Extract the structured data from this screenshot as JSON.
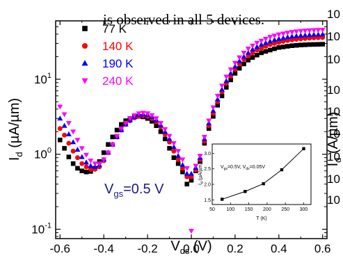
{
  "top_text": "is observed in all 5 devices.",
  "right_clip": {
    "ticks": [
      "10",
      "10",
      "10",
      "10",
      "10",
      "10",
      "10",
      "10",
      "10"
    ],
    "ylabel_main": "I",
    "ylabel_sub": "d",
    "ylabel_unit": " (A/µm)"
  },
  "chart_data": {
    "type": "scatter",
    "xlabel_main": "V",
    "xlabel_sub": "ds",
    "xlabel_unit": " (V)",
    "ylabel_main": "I",
    "ylabel_sub": "d",
    "ylabel_unit": " (µA/µm)",
    "xlim": [
      -0.62,
      0.62
    ],
    "ylim": [
      0.075,
      60
    ],
    "yscale": "log",
    "x_ticks": [
      "-0.6",
      "-0.4",
      "-0.2",
      "0.0",
      "0.2",
      "0.4",
      "0.6"
    ],
    "y_ticks": [
      {
        "base": "10",
        "exp": "-1",
        "value": 0.1
      },
      {
        "base": "10",
        "exp": "0",
        "value": 1
      },
      {
        "base": "10",
        "exp": "1",
        "value": 10
      }
    ],
    "annotation": {
      "main": "V",
      "sub": "gs",
      "rest": "=0.5 V"
    },
    "legend_position": "top-left",
    "series": [
      {
        "name": "77 K",
        "color": "#000000",
        "marker": "square",
        "points": [
          [
            -0.6,
            1.55
          ],
          [
            -0.58,
            1.2
          ],
          [
            -0.56,
            0.92
          ],
          [
            -0.54,
            0.75
          ],
          [
            -0.52,
            0.65
          ],
          [
            -0.5,
            0.6
          ],
          [
            -0.48,
            0.58
          ],
          [
            -0.46,
            0.59
          ],
          [
            -0.44,
            0.65
          ],
          [
            -0.42,
            0.8
          ],
          [
            -0.4,
            1.05
          ],
          [
            -0.38,
            1.35
          ],
          [
            -0.36,
            1.7
          ],
          [
            -0.34,
            2.1
          ],
          [
            -0.32,
            2.5
          ],
          [
            -0.3,
            2.8
          ],
          [
            -0.28,
            3.0
          ],
          [
            -0.26,
            3.15
          ],
          [
            -0.24,
            3.2
          ],
          [
            -0.22,
            3.15
          ],
          [
            -0.2,
            3.0
          ],
          [
            -0.18,
            2.75
          ],
          [
            -0.16,
            2.4
          ],
          [
            -0.14,
            2.0
          ],
          [
            -0.12,
            1.6
          ],
          [
            -0.1,
            1.2
          ],
          [
            -0.08,
            0.9
          ],
          [
            -0.06,
            0.75
          ],
          [
            -0.04,
            0.58
          ],
          [
            -0.02,
            0.4
          ],
          [
            0.0,
            0.45
          ],
          [
            0.02,
            0.6
          ],
          [
            0.04,
            0.8
          ],
          [
            0.06,
            1.4
          ],
          [
            0.08,
            2.2
          ],
          [
            0.1,
            3.2
          ],
          [
            0.12,
            4.5
          ],
          [
            0.14,
            6.0
          ],
          [
            0.16,
            7.8
          ],
          [
            0.18,
            9.8
          ],
          [
            0.2,
            12.0
          ],
          [
            0.22,
            14.0
          ],
          [
            0.24,
            16.0
          ],
          [
            0.26,
            18.0
          ],
          [
            0.28,
            19.5
          ],
          [
            0.3,
            21.0
          ],
          [
            0.32,
            22.5
          ],
          [
            0.34,
            23.5
          ],
          [
            0.36,
            24.5
          ],
          [
            0.38,
            25.5
          ],
          [
            0.4,
            26.5
          ],
          [
            0.42,
            27.0
          ],
          [
            0.44,
            27.5
          ],
          [
            0.46,
            28.0
          ],
          [
            0.48,
            28.3
          ],
          [
            0.5,
            28.6
          ],
          [
            0.52,
            28.8
          ],
          [
            0.54,
            29.0
          ],
          [
            0.56,
            29.1
          ],
          [
            0.58,
            29.2
          ],
          [
            0.6,
            29.3
          ]
        ]
      },
      {
        "name": "140 K",
        "color": "#ff0000",
        "marker": "circle",
        "points": [
          [
            -0.6,
            2.2
          ],
          [
            -0.58,
            1.8
          ],
          [
            -0.56,
            1.4
          ],
          [
            -0.54,
            1.1
          ],
          [
            -0.52,
            0.9
          ],
          [
            -0.5,
            0.75
          ],
          [
            -0.48,
            0.68
          ],
          [
            -0.46,
            0.63
          ],
          [
            -0.44,
            0.63
          ],
          [
            -0.42,
            0.68
          ],
          [
            -0.4,
            0.82
          ],
          [
            -0.38,
            1.05
          ],
          [
            -0.36,
            1.35
          ],
          [
            -0.34,
            1.7
          ],
          [
            -0.32,
            2.1
          ],
          [
            -0.3,
            2.5
          ],
          [
            -0.28,
            2.8
          ],
          [
            -0.26,
            3.05
          ],
          [
            -0.24,
            3.2
          ],
          [
            -0.22,
            3.25
          ],
          [
            -0.2,
            3.2
          ],
          [
            -0.18,
            3.0
          ],
          [
            -0.16,
            2.7
          ],
          [
            -0.14,
            2.3
          ],
          [
            -0.12,
            1.85
          ],
          [
            -0.1,
            1.45
          ],
          [
            -0.08,
            1.1
          ],
          [
            -0.06,
            0.85
          ],
          [
            -0.04,
            0.65
          ],
          [
            -0.02,
            0.5
          ],
          [
            0.0,
            0.5
          ],
          [
            0.02,
            0.62
          ],
          [
            0.04,
            0.85
          ],
          [
            0.06,
            1.5
          ],
          [
            0.08,
            2.4
          ],
          [
            0.1,
            3.5
          ],
          [
            0.12,
            5.0
          ],
          [
            0.14,
            6.8
          ],
          [
            0.16,
            8.8
          ],
          [
            0.18,
            11.0
          ],
          [
            0.2,
            13.5
          ],
          [
            0.22,
            16.0
          ],
          [
            0.24,
            18.5
          ],
          [
            0.26,
            20.5
          ],
          [
            0.28,
            22.5
          ],
          [
            0.3,
            24.5
          ],
          [
            0.32,
            26.0
          ],
          [
            0.34,
            27.5
          ],
          [
            0.36,
            29.0
          ],
          [
            0.38,
            30.0
          ],
          [
            0.4,
            31.0
          ],
          [
            0.42,
            32.0
          ],
          [
            0.44,
            32.8
          ],
          [
            0.46,
            33.5
          ],
          [
            0.48,
            34.0
          ],
          [
            0.5,
            34.5
          ],
          [
            0.52,
            35.0
          ],
          [
            0.54,
            35.3
          ],
          [
            0.56,
            35.6
          ],
          [
            0.58,
            35.8
          ],
          [
            0.6,
            36.0
          ]
        ]
      },
      {
        "name": "190 K",
        "color": "#0000ff",
        "marker": "triangle-up",
        "points": [
          [
            -0.6,
            3.0
          ],
          [
            -0.58,
            2.4
          ],
          [
            -0.56,
            1.85
          ],
          [
            -0.54,
            1.45
          ],
          [
            -0.52,
            1.15
          ],
          [
            -0.5,
            0.92
          ],
          [
            -0.48,
            0.78
          ],
          [
            -0.46,
            0.7
          ],
          [
            -0.44,
            0.68
          ],
          [
            -0.42,
            0.72
          ],
          [
            -0.4,
            0.85
          ],
          [
            -0.38,
            1.05
          ],
          [
            -0.36,
            1.35
          ],
          [
            -0.34,
            1.7
          ],
          [
            -0.32,
            2.1
          ],
          [
            -0.3,
            2.5
          ],
          [
            -0.28,
            2.85
          ],
          [
            -0.26,
            3.15
          ],
          [
            -0.24,
            3.35
          ],
          [
            -0.22,
            3.4
          ],
          [
            -0.2,
            3.35
          ],
          [
            -0.18,
            3.15
          ],
          [
            -0.16,
            2.85
          ],
          [
            -0.14,
            2.45
          ],
          [
            -0.12,
            2.0
          ],
          [
            -0.1,
            1.6
          ],
          [
            -0.08,
            1.25
          ],
          [
            -0.06,
            0.95
          ],
          [
            -0.04,
            0.72
          ],
          [
            -0.02,
            0.55
          ],
          [
            0.0,
            0.55
          ],
          [
            0.02,
            0.66
          ],
          [
            0.04,
            0.9
          ],
          [
            0.06,
            1.6
          ],
          [
            0.08,
            2.6
          ],
          [
            0.1,
            3.8
          ],
          [
            0.12,
            5.4
          ],
          [
            0.14,
            7.3
          ],
          [
            0.16,
            9.5
          ],
          [
            0.18,
            12.0
          ],
          [
            0.2,
            14.8
          ],
          [
            0.22,
            17.5
          ],
          [
            0.24,
            20.0
          ],
          [
            0.26,
            22.5
          ],
          [
            0.28,
            25.0
          ],
          [
            0.3,
            27.0
          ],
          [
            0.32,
            29.0
          ],
          [
            0.34,
            30.5
          ],
          [
            0.36,
            32.0
          ],
          [
            0.38,
            33.5
          ],
          [
            0.4,
            34.5
          ],
          [
            0.42,
            35.5
          ],
          [
            0.44,
            36.5
          ],
          [
            0.46,
            37.2
          ],
          [
            0.48,
            37.8
          ],
          [
            0.5,
            38.3
          ],
          [
            0.52,
            38.7
          ],
          [
            0.54,
            39.0
          ],
          [
            0.56,
            39.3
          ],
          [
            0.58,
            39.5
          ],
          [
            0.6,
            39.7
          ]
        ]
      },
      {
        "name": "240 K",
        "color": "#ff00ff",
        "marker": "triangle-down",
        "points": [
          [
            -0.6,
            4.3
          ],
          [
            -0.58,
            3.4
          ],
          [
            -0.56,
            2.6
          ],
          [
            -0.54,
            2.0
          ],
          [
            -0.52,
            1.55
          ],
          [
            -0.5,
            1.2
          ],
          [
            -0.48,
            0.98
          ],
          [
            -0.46,
            0.82
          ],
          [
            -0.44,
            0.75
          ],
          [
            -0.42,
            0.75
          ],
          [
            -0.4,
            0.85
          ],
          [
            -0.38,
            1.05
          ],
          [
            -0.36,
            1.35
          ],
          [
            -0.34,
            1.75
          ],
          [
            -0.32,
            2.2
          ],
          [
            -0.3,
            2.6
          ],
          [
            -0.28,
            3.0
          ],
          [
            -0.26,
            3.3
          ],
          [
            -0.24,
            3.5
          ],
          [
            -0.22,
            3.55
          ],
          [
            -0.2,
            3.5
          ],
          [
            -0.18,
            3.3
          ],
          [
            -0.16,
            3.0
          ],
          [
            -0.14,
            2.6
          ],
          [
            -0.12,
            2.15
          ],
          [
            -0.1,
            1.75
          ],
          [
            -0.08,
            1.4
          ],
          [
            -0.06,
            1.1
          ],
          [
            -0.04,
            0.85
          ],
          [
            -0.02,
            0.65
          ],
          [
            0.0,
            0.095
          ],
          [
            0.02,
            0.7
          ],
          [
            0.04,
            0.95
          ],
          [
            0.06,
            1.7
          ],
          [
            0.08,
            2.8
          ],
          [
            0.1,
            4.2
          ],
          [
            0.12,
            6.0
          ],
          [
            0.14,
            8.2
          ],
          [
            0.16,
            10.8
          ],
          [
            0.18,
            13.5
          ],
          [
            0.2,
            16.5
          ],
          [
            0.22,
            19.5
          ],
          [
            0.24,
            22.5
          ],
          [
            0.26,
            25.5
          ],
          [
            0.28,
            28.0
          ],
          [
            0.3,
            30.5
          ],
          [
            0.32,
            32.5
          ],
          [
            0.34,
            34.5
          ],
          [
            0.36,
            36.5
          ],
          [
            0.38,
            38.0
          ],
          [
            0.4,
            39.5
          ],
          [
            0.42,
            40.5
          ],
          [
            0.44,
            41.5
          ],
          [
            0.46,
            42.5
          ],
          [
            0.48,
            43.2
          ],
          [
            0.5,
            43.8
          ],
          [
            0.52,
            44.3
          ],
          [
            0.54,
            44.7
          ],
          [
            0.56,
            45.0
          ],
          [
            0.58,
            45.2
          ],
          [
            0.6,
            45.4
          ]
        ]
      }
    ],
    "inset": {
      "type": "line",
      "annotation": {
        "main": "V",
        "sub1": "gs",
        "mid": "=0.5V, V",
        "sub2": "ds",
        "rest": "=0.05V"
      },
      "xlabel": "T (K)",
      "ylabel_main": "I",
      "ylabel_sub": "d",
      "ylabel_unit": " (µA/µm)",
      "xlim": [
        50,
        320
      ],
      "ylim": [
        1.35,
        3.3
      ],
      "x_ticks": [
        "50",
        "100",
        "150",
        "200",
        "250",
        "300"
      ],
      "y_ticks": [
        "1.5",
        "2.0",
        "2.5",
        "3.0"
      ],
      "x": [
        77,
        140,
        190,
        240,
        300
      ],
      "y": [
        1.52,
        1.77,
        2.02,
        2.47,
        3.15
      ]
    }
  }
}
